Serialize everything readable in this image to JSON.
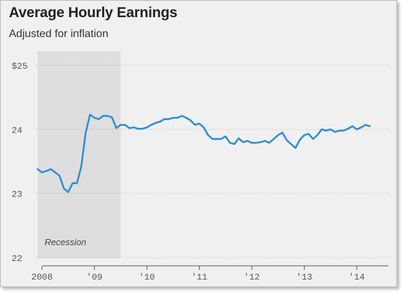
{
  "chart_data": {
    "type": "line",
    "title": "Average Hourly Earnings",
    "subtitle": "Adjusted for inflation",
    "xlabel": "",
    "ylabel": "",
    "xlim": [
      2007.88,
      2014.6
    ],
    "ylim": [
      22,
      25
    ],
    "y_ticks": [
      {
        "value": 25,
        "label": "$25"
      },
      {
        "value": 24,
        "label": "24"
      },
      {
        "value": 23,
        "label": "23"
      },
      {
        "value": 22,
        "label": "22"
      }
    ],
    "x_ticks": [
      {
        "value": 2008,
        "label": "2008"
      },
      {
        "value": 2009,
        "label": "'09"
      },
      {
        "value": 2010,
        "label": "'10"
      },
      {
        "value": 2011,
        "label": "'11"
      },
      {
        "value": 2012,
        "label": "'12"
      },
      {
        "value": 2013,
        "label": "'13"
      },
      {
        "value": 2014,
        "label": "'14"
      }
    ],
    "grid": true,
    "recession": {
      "label": "Recession",
      "start": 2007.92,
      "end": 2009.5
    },
    "line_color": "#2b8fd0",
    "series": [
      {
        "x": [
          2007.917,
          2008.0,
          2008.083,
          2008.167,
          2008.25,
          2008.333,
          2008.417,
          2008.5,
          2008.583,
          2008.667,
          2008.75,
          2008.833,
          2008.917,
          2009.0,
          2009.083,
          2009.167,
          2009.25,
          2009.333,
          2009.417,
          2009.5,
          2009.583,
          2009.667,
          2009.75,
          2009.833,
          2009.917,
          2010.0,
          2010.083,
          2010.167,
          2010.25,
          2010.333,
          2010.417,
          2010.5,
          2010.583,
          2010.667,
          2010.75,
          2010.833,
          2010.917,
          2011.0,
          2011.083,
          2011.167,
          2011.25,
          2011.333,
          2011.417,
          2011.5,
          2011.583,
          2011.667,
          2011.75,
          2011.833,
          2011.917,
          2012.0,
          2012.083,
          2012.167,
          2012.25,
          2012.333,
          2012.417,
          2012.5,
          2012.583,
          2012.667,
          2012.75,
          2012.833,
          2012.917,
          2013.0,
          2013.083,
          2013.167,
          2013.25,
          2013.333,
          2013.417,
          2013.5,
          2013.583,
          2013.667,
          2013.75,
          2013.833,
          2013.917,
          2014.0,
          2014.083,
          2014.167,
          2014.25
        ],
        "values": [
          23.38,
          23.33,
          23.35,
          23.38,
          23.33,
          23.28,
          23.08,
          23.02,
          23.16,
          23.16,
          23.42,
          23.95,
          24.23,
          24.18,
          24.16,
          24.21,
          24.21,
          24.19,
          24.02,
          24.07,
          24.07,
          24.02,
          24.03,
          24.01,
          24.01,
          24.03,
          24.07,
          24.1,
          24.12,
          24.16,
          24.16,
          24.18,
          24.18,
          24.21,
          24.18,
          24.14,
          24.07,
          24.09,
          24.03,
          23.91,
          23.85,
          23.85,
          23.85,
          23.89,
          23.79,
          23.77,
          23.86,
          23.8,
          23.82,
          23.79,
          23.79,
          23.8,
          23.82,
          23.79,
          23.85,
          23.91,
          23.95,
          23.83,
          23.77,
          23.71,
          23.84,
          23.91,
          23.93,
          23.85,
          23.91,
          24.0,
          23.98,
          24.0,
          23.96,
          23.98,
          23.98,
          24.01,
          24.05,
          24.0,
          24.03,
          24.07,
          24.05
        ]
      }
    ]
  }
}
